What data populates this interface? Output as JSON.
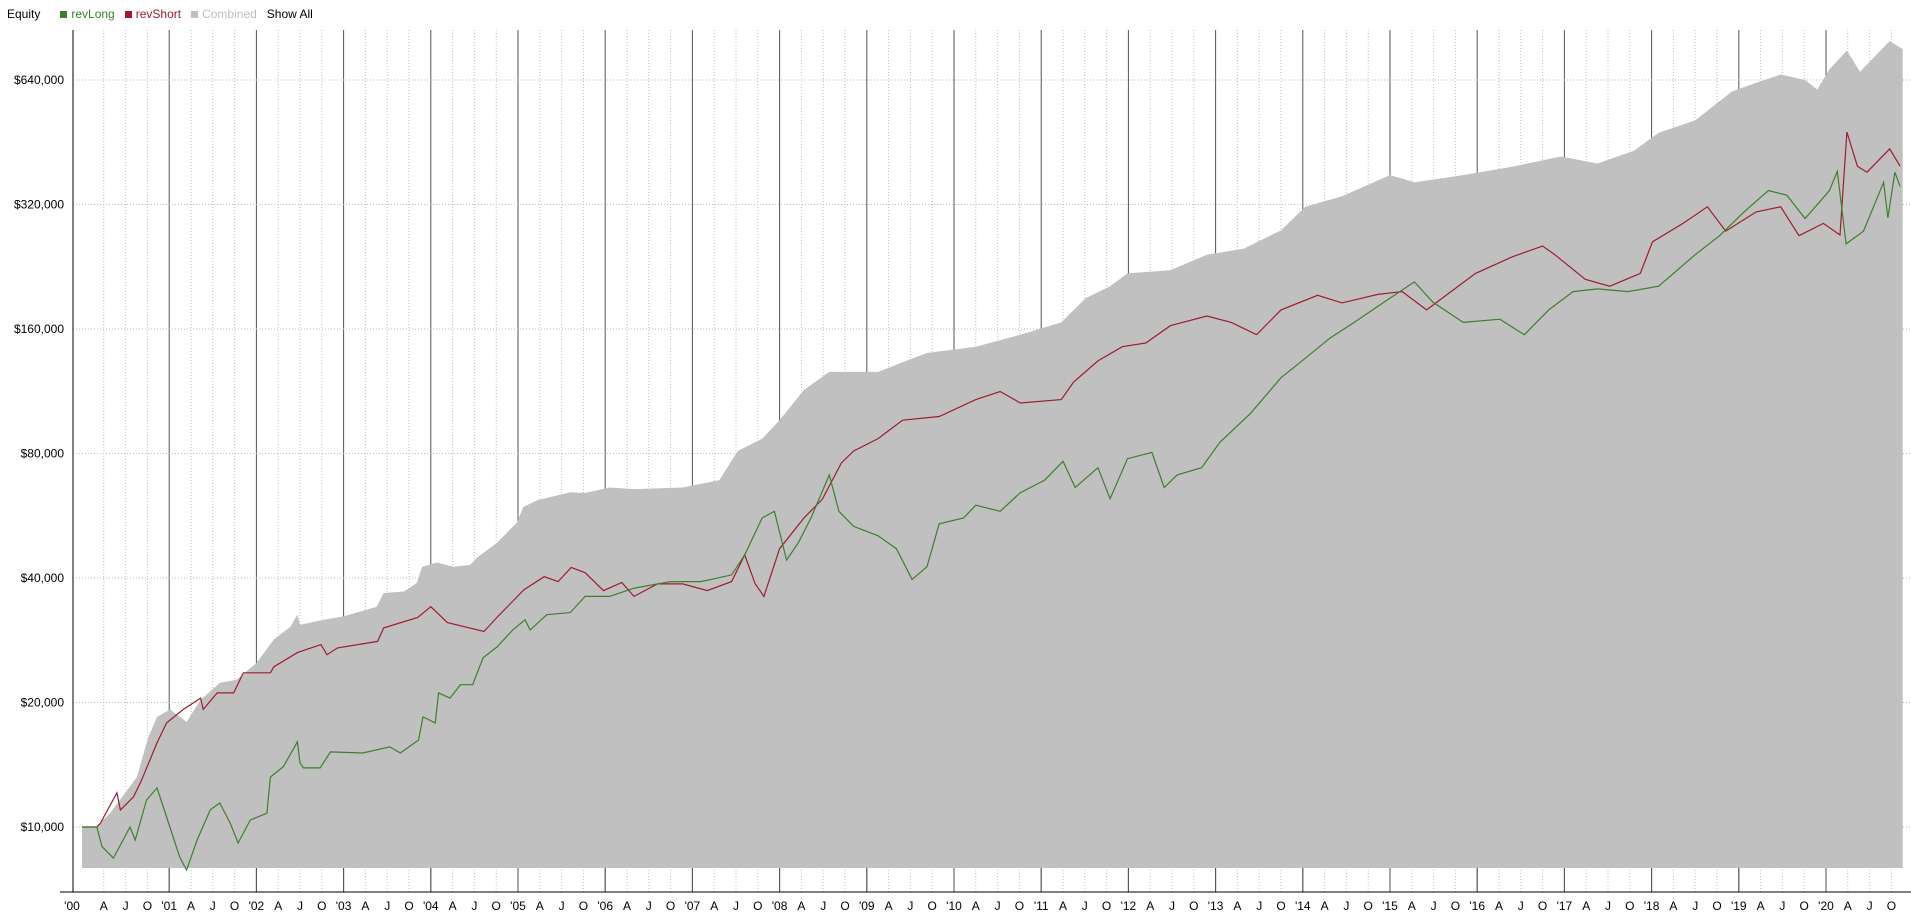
{
  "legend": {
    "title": "Equity",
    "show_all": "Show All",
    "items": [
      {
        "name": "revLong",
        "color": "#3d7f2e",
        "text_color": "#3d7f2e",
        "enabled": true
      },
      {
        "name": "revShort",
        "color": "#a01b30",
        "text_color": "#a01b30",
        "enabled": true
      },
      {
        "name": "Combined",
        "color": "#c0c0c0",
        "text_color": "#c0c0c0",
        "enabled": true
      }
    ]
  },
  "chart_data": {
    "type": "line",
    "title": "Equity",
    "y_scale": "log",
    "ylim": [
      6960,
      843000
    ],
    "xlim": [
      1999.9,
      2020.97
    ],
    "grid": true,
    "legend_placement": "top-left",
    "y_ticks": [
      {
        "value": 10000,
        "label": "$10,000"
      },
      {
        "value": 20000,
        "label": "$20,000"
      },
      {
        "value": 40000,
        "label": "$40,000"
      },
      {
        "value": 80000,
        "label": "$80,000"
      },
      {
        "value": 160000,
        "label": "$160,000"
      },
      {
        "value": 320000,
        "label": "$320,000"
      },
      {
        "value": 640000,
        "label": "$640,000"
      }
    ],
    "x_year_labels": [
      "'00",
      "'01",
      "'02",
      "'03",
      "'04",
      "'05",
      "'06",
      "'07",
      "'08",
      "'09",
      "'10",
      "'11",
      "'12",
      "'13",
      "'14",
      "'15",
      "'16",
      "'17",
      "'18",
      "'19",
      "'20"
    ],
    "x_quarter_labels": [
      "A",
      "J",
      "O"
    ],
    "series": [
      {
        "name": "Combined",
        "type": "area",
        "color": "#c0c0c0",
        "points": [
          [
            2000.0,
            10000
          ],
          [
            2000.17,
            10000
          ],
          [
            2000.24,
            10400
          ],
          [
            2000.32,
            10800
          ],
          [
            2000.63,
            13200
          ],
          [
            2000.76,
            16500
          ],
          [
            2000.86,
            18460
          ],
          [
            2001.01,
            19240
          ],
          [
            2001.2,
            17950
          ],
          [
            2001.36,
            20300
          ],
          [
            2001.58,
            22300
          ],
          [
            2001.77,
            22700
          ],
          [
            2002.0,
            24900
          ],
          [
            2002.2,
            28400
          ],
          [
            2002.39,
            30500
          ],
          [
            2002.47,
            32600
          ],
          [
            2002.5,
            30800
          ],
          [
            2002.77,
            31700
          ],
          [
            2003.0,
            32300
          ],
          [
            2003.38,
            34100
          ],
          [
            2003.46,
            36800
          ],
          [
            2003.69,
            37100
          ],
          [
            2003.84,
            38900
          ],
          [
            2003.9,
            42600
          ],
          [
            2004.07,
            43600
          ],
          [
            2004.26,
            42600
          ],
          [
            2004.45,
            43000
          ],
          [
            2004.53,
            44800
          ],
          [
            2004.76,
            48700
          ],
          [
            2004.99,
            54500
          ],
          [
            2005.06,
            59400
          ],
          [
            2005.22,
            61700
          ],
          [
            2005.6,
            64500
          ],
          [
            2005.77,
            64200
          ],
          [
            2006.05,
            66200
          ],
          [
            2006.33,
            65600
          ],
          [
            2006.89,
            66200
          ],
          [
            2007.31,
            69000
          ],
          [
            2007.52,
            81100
          ],
          [
            2007.8,
            86900
          ],
          [
            2008.0,
            96300
          ],
          [
            2008.28,
            114000
          ],
          [
            2008.57,
            126000
          ],
          [
            2008.85,
            126000
          ],
          [
            2009.13,
            126000
          ],
          [
            2009.41,
            133000
          ],
          [
            2009.69,
            140000
          ],
          [
            2010.25,
            145000
          ],
          [
            2010.76,
            155000
          ],
          [
            2011.23,
            166000
          ],
          [
            2011.51,
            190000
          ],
          [
            2011.79,
            203000
          ],
          [
            2011.99,
            218000
          ],
          [
            2012.48,
            222000
          ],
          [
            2012.9,
            242000
          ],
          [
            2013.32,
            250000
          ],
          [
            2013.75,
            277000
          ],
          [
            2014.03,
            316000
          ],
          [
            2014.45,
            335000
          ],
          [
            2015.0,
            377000
          ],
          [
            2015.28,
            362000
          ],
          [
            2015.84,
            377000
          ],
          [
            2016.4,
            395000
          ],
          [
            2016.96,
            418000
          ],
          [
            2017.38,
            402000
          ],
          [
            2017.8,
            432000
          ],
          [
            2018.08,
            477000
          ],
          [
            2018.5,
            511000
          ],
          [
            2018.92,
            600000
          ],
          [
            2019.2,
            630000
          ],
          [
            2019.48,
            660000
          ],
          [
            2019.76,
            640000
          ],
          [
            2019.9,
            607000
          ],
          [
            2020.04,
            680000
          ],
          [
            2020.24,
            754000
          ],
          [
            2020.39,
            670000
          ],
          [
            2020.73,
            795000
          ],
          [
            2020.88,
            760000
          ]
        ]
      },
      {
        "name": "revShort",
        "type": "line",
        "color": "#a01b30",
        "points": [
          [
            2000.0,
            10000
          ],
          [
            2000.17,
            10000
          ],
          [
            2000.21,
            10200
          ],
          [
            2000.4,
            12100
          ],
          [
            2000.44,
            10990
          ],
          [
            2000.59,
            11820
          ],
          [
            2000.67,
            12790
          ],
          [
            2000.78,
            14530
          ],
          [
            2000.86,
            15970
          ],
          [
            2000.97,
            17850
          ],
          [
            2001.16,
            19240
          ],
          [
            2001.36,
            20500
          ],
          [
            2001.39,
            19240
          ],
          [
            2001.55,
            21100
          ],
          [
            2001.74,
            21100
          ],
          [
            2001.85,
            23600
          ],
          [
            2002.16,
            23600
          ],
          [
            2002.2,
            24400
          ],
          [
            2002.47,
            26400
          ],
          [
            2002.74,
            27600
          ],
          [
            2002.81,
            26100
          ],
          [
            2002.93,
            27100
          ],
          [
            2003.39,
            28100
          ],
          [
            2003.46,
            30300
          ],
          [
            2003.85,
            32100
          ],
          [
            2004.0,
            34100
          ],
          [
            2004.19,
            31200
          ],
          [
            2004.61,
            29700
          ],
          [
            2004.77,
            32300
          ],
          [
            2005.07,
            37500
          ],
          [
            2005.3,
            40300
          ],
          [
            2005.46,
            39200
          ],
          [
            2005.61,
            42400
          ],
          [
            2005.77,
            41200
          ],
          [
            2005.98,
            37300
          ],
          [
            2006.19,
            39000
          ],
          [
            2006.33,
            36100
          ],
          [
            2006.6,
            38700
          ],
          [
            2006.89,
            38700
          ],
          [
            2007.17,
            37300
          ],
          [
            2007.45,
            39200
          ],
          [
            2007.6,
            45500
          ],
          [
            2007.72,
            38700
          ],
          [
            2007.82,
            36100
          ],
          [
            2008.0,
            47100
          ],
          [
            2008.28,
            55900
          ],
          [
            2008.49,
            62000
          ],
          [
            2008.71,
            76000
          ],
          [
            2008.85,
            81100
          ],
          [
            2009.13,
            86900
          ],
          [
            2009.41,
            96300
          ],
          [
            2009.83,
            98300
          ],
          [
            2010.25,
            108000
          ],
          [
            2010.53,
            113000
          ],
          [
            2010.76,
            106000
          ],
          [
            2011.23,
            108000
          ],
          [
            2011.37,
            119000
          ],
          [
            2011.65,
            134000
          ],
          [
            2011.93,
            145000
          ],
          [
            2012.2,
            148000
          ],
          [
            2012.48,
            163000
          ],
          [
            2012.9,
            172000
          ],
          [
            2013.18,
            166000
          ],
          [
            2013.47,
            155000
          ],
          [
            2013.75,
            178000
          ],
          [
            2014.17,
            193000
          ],
          [
            2014.45,
            185000
          ],
          [
            2014.86,
            194000
          ],
          [
            2015.14,
            197000
          ],
          [
            2015.42,
            178000
          ],
          [
            2015.7,
            197000
          ],
          [
            2015.98,
            218000
          ],
          [
            2016.4,
            239000
          ],
          [
            2016.75,
            254000
          ],
          [
            2016.89,
            242000
          ],
          [
            2017.24,
            211000
          ],
          [
            2017.52,
            203000
          ],
          [
            2017.87,
            218000
          ],
          [
            2018.01,
            260000
          ],
          [
            2018.36,
            288000
          ],
          [
            2018.64,
            316000
          ],
          [
            2018.85,
            276000
          ],
          [
            2019.2,
            307000
          ],
          [
            2019.48,
            316000
          ],
          [
            2019.69,
            269000
          ],
          [
            2019.97,
            288000
          ],
          [
            2020.16,
            270000
          ],
          [
            2020.24,
            479000
          ],
          [
            2020.36,
            396000
          ],
          [
            2020.47,
            383000
          ],
          [
            2020.73,
            436000
          ],
          [
            2020.85,
            396000
          ]
        ]
      },
      {
        "name": "revLong",
        "type": "line",
        "color": "#3d7f2e",
        "points": [
          [
            2000.0,
            10000
          ],
          [
            2000.17,
            10000
          ],
          [
            2000.23,
            8960
          ],
          [
            2000.36,
            8410
          ],
          [
            2000.55,
            10000
          ],
          [
            2000.61,
            9300
          ],
          [
            2000.74,
            11620
          ],
          [
            2000.86,
            12430
          ],
          [
            2000.97,
            10570
          ],
          [
            2001.12,
            8460
          ],
          [
            2001.2,
            7870
          ],
          [
            2001.32,
            9300
          ],
          [
            2001.47,
            11000
          ],
          [
            2001.58,
            11430
          ],
          [
            2001.7,
            10220
          ],
          [
            2001.79,
            9150
          ],
          [
            2001.93,
            10400
          ],
          [
            2002.12,
            10800
          ],
          [
            2002.16,
            13200
          ],
          [
            2002.31,
            14000
          ],
          [
            2002.47,
            16070
          ],
          [
            2002.5,
            14290
          ],
          [
            2002.54,
            13900
          ],
          [
            2002.73,
            13900
          ],
          [
            2002.85,
            15190
          ],
          [
            2003.22,
            15100
          ],
          [
            2003.53,
            15620
          ],
          [
            2003.65,
            15100
          ],
          [
            2003.86,
            16230
          ],
          [
            2003.91,
            18460
          ],
          [
            2004.05,
            17840
          ],
          [
            2004.09,
            21100
          ],
          [
            2004.22,
            20500
          ],
          [
            2004.34,
            22080
          ],
          [
            2004.48,
            22080
          ],
          [
            2004.6,
            25650
          ],
          [
            2004.76,
            27250
          ],
          [
            2004.94,
            29960
          ],
          [
            2005.08,
            31700
          ],
          [
            2005.14,
            29960
          ],
          [
            2005.33,
            32600
          ],
          [
            2005.6,
            33000
          ],
          [
            2005.77,
            36100
          ],
          [
            2006.05,
            36100
          ],
          [
            2006.33,
            37800
          ],
          [
            2006.75,
            39200
          ],
          [
            2007.1,
            39200
          ],
          [
            2007.45,
            40700
          ],
          [
            2007.6,
            45500
          ],
          [
            2007.8,
            55900
          ],
          [
            2007.94,
            58000
          ],
          [
            2008.08,
            44200
          ],
          [
            2008.22,
            48900
          ],
          [
            2008.36,
            55900
          ],
          [
            2008.57,
            71000
          ],
          [
            2008.68,
            58000
          ],
          [
            2008.85,
            53300
          ],
          [
            2009.13,
            50600
          ],
          [
            2009.34,
            47100
          ],
          [
            2009.52,
            39700
          ],
          [
            2009.69,
            42600
          ],
          [
            2009.83,
            54100
          ],
          [
            2010.11,
            55900
          ],
          [
            2010.25,
            60000
          ],
          [
            2010.53,
            58000
          ],
          [
            2010.76,
            64300
          ],
          [
            2011.04,
            69000
          ],
          [
            2011.25,
            76600
          ],
          [
            2011.39,
            66200
          ],
          [
            2011.65,
            73900
          ],
          [
            2011.79,
            62200
          ],
          [
            2011.99,
            77700
          ],
          [
            2012.27,
            80500
          ],
          [
            2012.41,
            66200
          ],
          [
            2012.56,
            71000
          ],
          [
            2012.84,
            73900
          ],
          [
            2013.05,
            85200
          ],
          [
            2013.4,
            100000
          ],
          [
            2013.75,
            122000
          ],
          [
            2014.03,
            136000
          ],
          [
            2014.31,
            152000
          ],
          [
            2014.59,
            166000
          ],
          [
            2015.0,
            190000
          ],
          [
            2015.28,
            208000
          ],
          [
            2015.49,
            186000
          ],
          [
            2015.84,
            166000
          ],
          [
            2016.26,
            169000
          ],
          [
            2016.54,
            155000
          ],
          [
            2016.82,
            178000
          ],
          [
            2017.1,
            197000
          ],
          [
            2017.38,
            200000
          ],
          [
            2017.73,
            197000
          ],
          [
            2018.08,
            203000
          ],
          [
            2018.5,
            242000
          ],
          [
            2018.78,
            269000
          ],
          [
            2019.06,
            307000
          ],
          [
            2019.34,
            346000
          ],
          [
            2019.55,
            337000
          ],
          [
            2019.76,
            296000
          ],
          [
            2020.04,
            346000
          ],
          [
            2020.13,
            385000
          ],
          [
            2020.23,
            257000
          ],
          [
            2020.43,
            276000
          ],
          [
            2020.66,
            362000
          ],
          [
            2020.71,
            297000
          ],
          [
            2020.79,
            383000
          ],
          [
            2020.85,
            354000
          ]
        ]
      }
    ]
  }
}
